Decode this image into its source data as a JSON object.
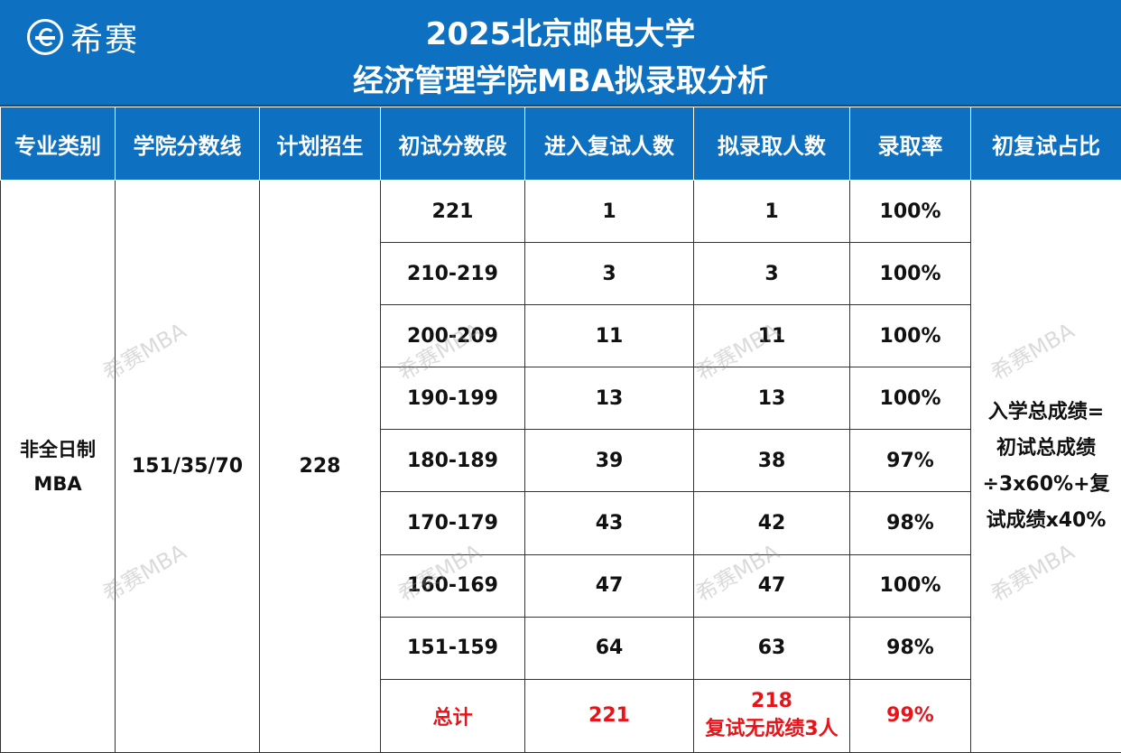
{
  "header": {
    "logo_text": "希赛",
    "title_line1": "2025北京邮电大学",
    "title_line2": "经济管理学院MBA拟录取分析"
  },
  "columns": [
    "专业类别",
    "学院分数线",
    "计划招生",
    "初试分数段",
    "进入复试人数",
    "拟录取人数",
    "录取率",
    "初复试占比"
  ],
  "program": {
    "category_line1": "非全日制",
    "category_line2": "MBA",
    "score_line": "151/35/70",
    "plan": "228"
  },
  "rows": [
    {
      "range": "221",
      "retest": "1",
      "admitted": "1",
      "rate": "100%"
    },
    {
      "range": "210-219",
      "retest": "3",
      "admitted": "3",
      "rate": "100%"
    },
    {
      "range": "200-209",
      "retest": "11",
      "admitted": "11",
      "rate": "100%"
    },
    {
      "range": "190-199",
      "retest": "13",
      "admitted": "13",
      "rate": "100%"
    },
    {
      "range": "180-189",
      "retest": "39",
      "admitted": "38",
      "rate": "97%"
    },
    {
      "range": "170-179",
      "retest": "43",
      "admitted": "42",
      "rate": "98%"
    },
    {
      "range": "160-169",
      "retest": "47",
      "admitted": "47",
      "rate": "100%"
    },
    {
      "range": "151-159",
      "retest": "64",
      "admitted": "63",
      "rate": "98%"
    }
  ],
  "total": {
    "label": "总计",
    "retest": "221",
    "admitted": "218",
    "admitted_note": "复试无成绩3人",
    "rate": "99%"
  },
  "ratio_note": {
    "line1": "入学总成绩=",
    "line2": "初试总成绩",
    "line3": "÷3x60%+复",
    "line4": "试成绩x40%"
  },
  "watermark": "希赛MBA",
  "colors": {
    "header_blue": "#0E70C0",
    "total_red": "#E8141A"
  }
}
